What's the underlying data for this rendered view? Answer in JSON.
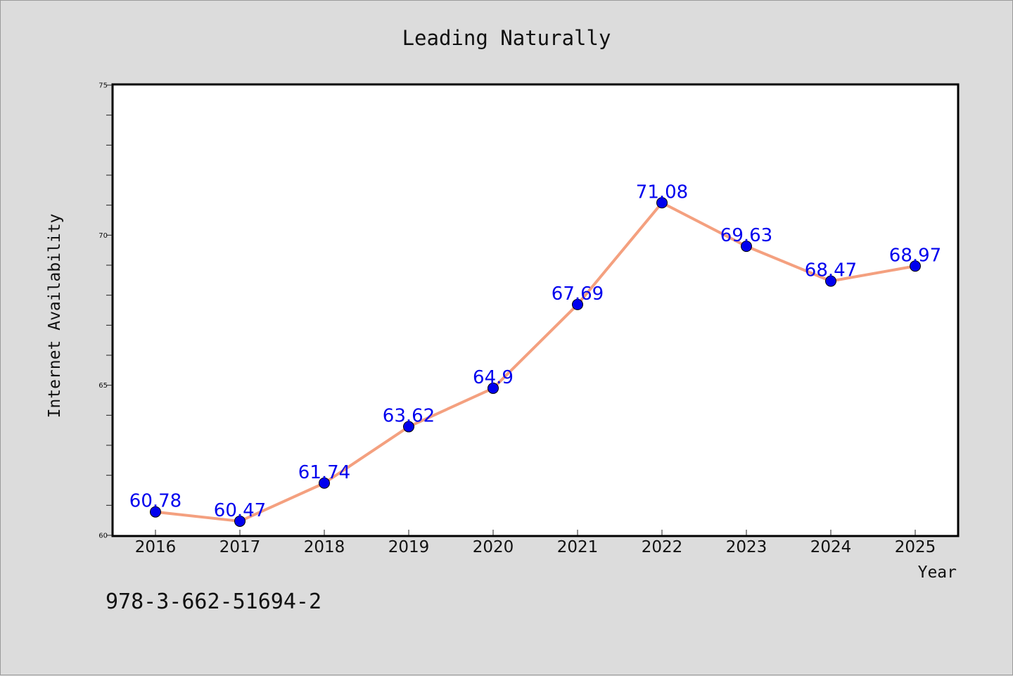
{
  "caption": "978-3-662-51694-2",
  "colors": {
    "background": "#dcdcdc",
    "plot_background": "#ffffff",
    "line": "#f4a07f",
    "marker": "#0000ee",
    "label": "#0000ee"
  },
  "chart_data": {
    "type": "line",
    "title": "Leading Naturally",
    "xlabel": "Year",
    "ylabel": "Internet Availability",
    "categories": [
      "2016",
      "2017",
      "2018",
      "2019",
      "2020",
      "2021",
      "2022",
      "2023",
      "2024",
      "2025"
    ],
    "series": [
      {
        "values": [
          60.78,
          60.47,
          61.74,
          63.62,
          64.9,
          67.69,
          71.08,
          69.63,
          68.47,
          68.97
        ],
        "labels": [
          "60.78",
          "60.47",
          "61.74",
          "63.62",
          "64.9",
          "67.69",
          "71.08",
          "69.63",
          "68.47",
          "68.97"
        ]
      }
    ],
    "ylim": [
      60,
      75
    ],
    "yticks": [
      "60",
      "65",
      "70",
      "75"
    ],
    "grid": false,
    "legend": "none"
  }
}
